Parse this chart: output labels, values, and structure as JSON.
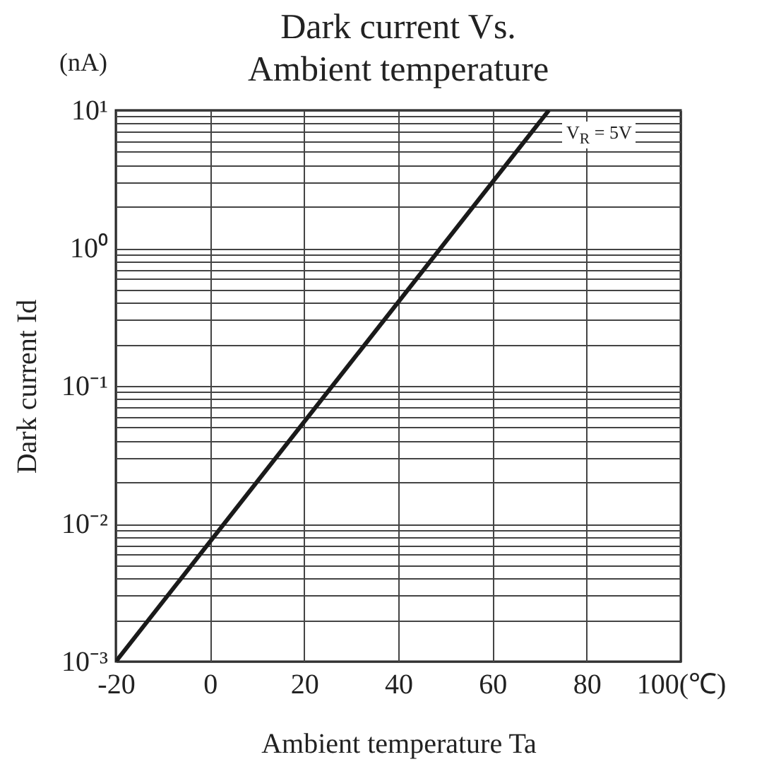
{
  "chart_data": {
    "type": "line",
    "title": "Dark current Vs.\nAmbient temperature",
    "xlabel": "Ambient temperature  Ta",
    "ylabel": "Dark current  Id",
    "annotations": [
      "(nA)",
      "V$_{R}$ = 5V"
    ],
    "series": [
      {
        "color": "#1a1a1a",
        "x": [
          -20,
          72
        ],
        "values": [
          0.001,
          10
        ]
      }
    ],
    "log": "y",
    "grid": true,
    "xlim": [
      -20,
      100
    ],
    "ylim": [
      0.001,
      10
    ],
    "xticks": [
      -20,
      0,
      20,
      40,
      60,
      80,
      {
        "value": 100,
        "label": "100(℃)"
      }
    ],
    "yticks": [
      {
        "value": 0.001,
        "label": "10⁻³"
      },
      {
        "value": 0.002,
        "label": null
      },
      {
        "value": 0.003,
        "label": null
      },
      {
        "value": 0.004,
        "label": null
      },
      {
        "value": 0.005,
        "label": null
      },
      {
        "value": 0.006,
        "label": null
      },
      {
        "value": 0.007,
        "label": null
      },
      {
        "value": 0.008,
        "label": null
      },
      {
        "value": 0.009,
        "label": null
      },
      {
        "value": 0.01,
        "label": "10⁻²"
      },
      {
        "value": 0.02,
        "label": null
      },
      {
        "value": 0.03,
        "label": null
      },
      {
        "value": 0.04,
        "label": null
      },
      {
        "value": 0.05,
        "label": null
      },
      {
        "value": 0.06,
        "label": null
      },
      {
        "value": 0.07,
        "label": null
      },
      {
        "value": 0.08,
        "label": null
      },
      {
        "value": 0.09,
        "label": null
      },
      {
        "value": 0.1,
        "label": "10⁻¹"
      },
      {
        "value": 0.2,
        "label": null
      },
      {
        "value": 0.3,
        "label": null
      },
      {
        "value": 0.4,
        "label": null
      },
      {
        "value": 0.5,
        "label": null
      },
      {
        "value": 0.6,
        "label": null
      },
      {
        "value": 0.7,
        "label": null
      },
      {
        "value": 0.8,
        "label": null
      },
      {
        "value": 0.9,
        "label": null
      },
      {
        "value": 1,
        "label": "10⁰"
      },
      {
        "value": 2,
        "label": null
      },
      {
        "value": 3,
        "label": null
      },
      {
        "value": 4,
        "label": null
      },
      {
        "value": 5,
        "label": null
      },
      {
        "value": 6,
        "label": null
      },
      {
        "value": 7,
        "label": null
      },
      {
        "value": 8,
        "label": null
      },
      {
        "value": 9,
        "label": null
      },
      {
        "value": 10,
        "label": "10¹"
      }
    ]
  }
}
